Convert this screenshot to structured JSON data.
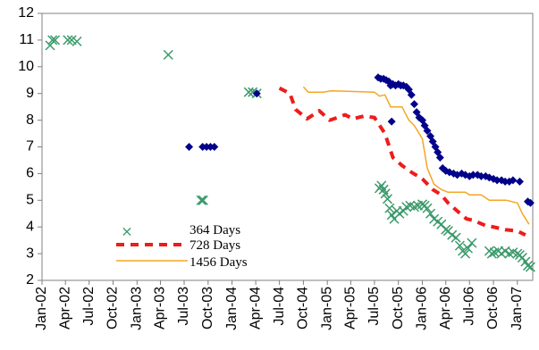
{
  "chart_data": {
    "type": "line",
    "ylim": [
      2,
      12
    ],
    "y_ticks": [
      "2",
      "3",
      "4",
      "5",
      "6",
      "7",
      "8",
      "9",
      "10",
      "11",
      "12"
    ],
    "x_range": [
      "2002-01-01",
      "2007-03-01"
    ],
    "x_ticks": [
      "Jan-02",
      "Apr-02",
      "Jul-02",
      "Oct-02",
      "Jan-03",
      "Apr-03",
      "Jul-03",
      "Oct-03",
      "Jan-04",
      "Apr-04",
      "Jul-04",
      "Oct-04",
      "Jan-05",
      "Apr-05",
      "Jul-05",
      "Oct-05",
      "Jan-06",
      "Apr-06",
      "Jul-06",
      "Oct-06",
      "Jan-07"
    ],
    "x_tick_dates": [
      "2002-01-01",
      "2002-04-01",
      "2002-07-01",
      "2002-10-01",
      "2003-01-01",
      "2003-04-01",
      "2003-07-01",
      "2003-10-01",
      "2004-01-01",
      "2004-04-01",
      "2004-07-01",
      "2004-10-01",
      "2005-01-01",
      "2005-04-01",
      "2005-07-01",
      "2005-10-01",
      "2006-01-01",
      "2006-04-01",
      "2006-07-01",
      "2006-10-01",
      "2007-01-01"
    ],
    "grid": false,
    "legend_position": "bottom-left",
    "series": [
      {
        "name": "364 Days",
        "style": "x-markers",
        "color": "#3a9a6a",
        "points": [
          [
            "2002-02-01",
            10.8
          ],
          [
            "2002-02-10",
            11.0
          ],
          [
            "2002-02-20",
            11.0
          ],
          [
            "2002-04-10",
            11.0
          ],
          [
            "2002-04-25",
            11.0
          ],
          [
            "2002-05-15",
            10.95
          ],
          [
            "2003-05-01",
            10.45
          ],
          [
            "2003-09-05",
            5.0
          ],
          [
            "2003-09-12",
            5.0
          ],
          [
            "2004-03-05",
            9.05
          ],
          [
            "2004-03-20",
            9.05
          ],
          [
            "2004-04-05",
            9.0
          ],
          [
            "2005-07-20",
            5.45
          ],
          [
            "2005-07-28",
            5.55
          ],
          [
            "2005-08-05",
            5.4
          ],
          [
            "2005-08-12",
            5.25
          ],
          [
            "2005-08-20",
            5.05
          ],
          [
            "2005-08-28",
            4.7
          ],
          [
            "2005-09-05",
            4.45
          ],
          [
            "2005-09-15",
            4.3
          ],
          [
            "2005-09-25",
            4.6
          ],
          [
            "2005-10-05",
            4.5
          ],
          [
            "2005-10-20",
            4.6
          ],
          [
            "2005-11-01",
            4.75
          ],
          [
            "2005-11-15",
            4.8
          ],
          [
            "2005-12-01",
            4.75
          ],
          [
            "2005-12-15",
            4.8
          ],
          [
            "2006-01-01",
            4.85
          ],
          [
            "2006-01-10",
            4.8
          ],
          [
            "2006-01-20",
            4.7
          ],
          [
            "2006-02-01",
            4.5
          ],
          [
            "2006-02-15",
            4.3
          ],
          [
            "2006-03-01",
            4.2
          ],
          [
            "2006-03-15",
            4.1
          ],
          [
            "2006-04-01",
            3.9
          ],
          [
            "2006-04-10",
            3.85
          ],
          [
            "2006-04-25",
            3.7
          ],
          [
            "2006-05-10",
            3.6
          ],
          [
            "2006-05-25",
            3.3
          ],
          [
            "2006-06-05",
            3.1
          ],
          [
            "2006-06-15",
            3.0
          ],
          [
            "2006-06-25",
            3.2
          ],
          [
            "2006-07-10",
            3.4
          ],
          [
            "2006-09-15",
            3.1
          ],
          [
            "2006-09-25",
            3.0
          ],
          [
            "2006-10-05",
            3.05
          ],
          [
            "2006-10-20",
            3.1
          ],
          [
            "2006-11-01",
            3.0
          ],
          [
            "2006-11-15",
            3.1
          ],
          [
            "2006-12-01",
            3.0
          ],
          [
            "2006-12-15",
            3.05
          ],
          [
            "2007-01-01",
            3.0
          ],
          [
            "2007-01-10",
            2.95
          ],
          [
            "2007-01-20",
            2.85
          ],
          [
            "2007-02-01",
            2.7
          ],
          [
            "2007-02-10",
            2.55
          ],
          [
            "2007-02-20",
            2.5
          ]
        ]
      },
      {
        "name": "728 Days",
        "style": "dashed-line",
        "color": "#ee1c1c",
        "points": [
          [
            "2004-07-01",
            9.2
          ],
          [
            "2004-08-10",
            9.0
          ],
          [
            "2004-09-01",
            8.4
          ],
          [
            "2004-10-15",
            8.05
          ],
          [
            "2004-12-01",
            8.35
          ],
          [
            "2005-01-10",
            8.0
          ],
          [
            "2005-02-10",
            8.1
          ],
          [
            "2005-03-10",
            8.2
          ],
          [
            "2005-04-10",
            8.05
          ],
          [
            "2005-05-20",
            8.15
          ],
          [
            "2005-07-01",
            8.1
          ],
          [
            "2005-08-10",
            7.5
          ],
          [
            "2005-09-10",
            6.6
          ],
          [
            "2005-10-15",
            6.3
          ],
          [
            "2005-11-20",
            6.05
          ],
          [
            "2006-01-01",
            5.8
          ],
          [
            "2006-02-10",
            5.4
          ],
          [
            "2006-03-15",
            5.2
          ],
          [
            "2006-04-10",
            4.9
          ],
          [
            "2006-05-15",
            4.6
          ],
          [
            "2006-06-20",
            4.3
          ],
          [
            "2006-07-15",
            4.25
          ],
          [
            "2006-09-01",
            4.05
          ],
          [
            "2006-10-01",
            4.0
          ],
          [
            "2006-11-15",
            3.9
          ],
          [
            "2007-01-01",
            3.85
          ],
          [
            "2007-02-01",
            3.7
          ]
        ]
      },
      {
        "name": "1456 Days",
        "style": "solid-line",
        "color": "#f5a623",
        "points": [
          [
            "2004-10-01",
            9.25
          ],
          [
            "2004-10-20",
            9.05
          ],
          [
            "2004-12-15",
            9.05
          ],
          [
            "2005-01-15",
            9.1
          ],
          [
            "2005-07-01",
            9.05
          ],
          [
            "2005-07-20",
            8.9
          ],
          [
            "2005-08-10",
            8.95
          ],
          [
            "2005-09-01",
            8.5
          ],
          [
            "2005-10-15",
            8.5
          ],
          [
            "2005-11-10",
            8.0
          ],
          [
            "2005-12-01",
            7.8
          ],
          [
            "2006-01-01",
            7.3
          ],
          [
            "2006-01-20",
            6.2
          ],
          [
            "2006-02-15",
            5.6
          ],
          [
            "2006-03-15",
            5.4
          ],
          [
            "2006-04-10",
            5.3
          ],
          [
            "2006-06-15",
            5.3
          ],
          [
            "2006-07-01",
            5.2
          ],
          [
            "2006-08-15",
            5.2
          ],
          [
            "2006-09-15",
            5.0
          ],
          [
            "2006-11-20",
            5.0
          ],
          [
            "2007-01-01",
            4.9
          ],
          [
            "2007-01-20",
            4.5
          ],
          [
            "2007-02-15",
            4.1
          ]
        ]
      },
      {
        "name": "",
        "style": "diamond-markers",
        "color": "#00008b",
        "points": [
          [
            "2003-07-20",
            7.0
          ],
          [
            "2003-09-10",
            7.0
          ],
          [
            "2003-09-25",
            7.0
          ],
          [
            "2003-10-10",
            7.0
          ],
          [
            "2003-10-25",
            7.0
          ],
          [
            "2004-04-05",
            9.0
          ],
          [
            "2005-07-15",
            9.6
          ],
          [
            "2005-07-25",
            9.55
          ],
          [
            "2005-08-05",
            9.55
          ],
          [
            "2005-08-15",
            9.5
          ],
          [
            "2005-08-25",
            9.45
          ],
          [
            "2005-09-01",
            9.3
          ],
          [
            "2005-09-10",
            9.35
          ],
          [
            "2005-09-20",
            9.3
          ],
          [
            "2005-10-01",
            9.35
          ],
          [
            "2005-10-10",
            9.3
          ],
          [
            "2005-10-20",
            9.3
          ],
          [
            "2005-11-01",
            9.25
          ],
          [
            "2005-11-10",
            9.15
          ],
          [
            "2005-11-20",
            8.95
          ],
          [
            "2005-09-05",
            7.95
          ],
          [
            "2005-12-01",
            8.6
          ],
          [
            "2005-12-10",
            8.3
          ],
          [
            "2005-12-20",
            8.1
          ],
          [
            "2006-01-01",
            8.0
          ],
          [
            "2006-01-10",
            7.8
          ],
          [
            "2006-01-20",
            7.6
          ],
          [
            "2006-02-01",
            7.4
          ],
          [
            "2006-02-10",
            7.2
          ],
          [
            "2006-02-20",
            7.0
          ],
          [
            "2006-03-01",
            6.8
          ],
          [
            "2006-03-10",
            6.6
          ],
          [
            "2006-03-20",
            6.2
          ],
          [
            "2006-04-01",
            6.1
          ],
          [
            "2006-04-15",
            6.05
          ],
          [
            "2006-05-01",
            6.0
          ],
          [
            "2006-05-15",
            5.95
          ],
          [
            "2006-06-01",
            6.0
          ],
          [
            "2006-06-15",
            5.95
          ],
          [
            "2006-07-01",
            5.9
          ],
          [
            "2006-07-15",
            5.95
          ],
          [
            "2006-08-01",
            5.95
          ],
          [
            "2006-08-15",
            5.9
          ],
          [
            "2006-09-01",
            5.9
          ],
          [
            "2006-09-15",
            5.85
          ],
          [
            "2006-10-01",
            5.8
          ],
          [
            "2006-10-15",
            5.75
          ],
          [
            "2006-11-01",
            5.75
          ],
          [
            "2006-11-15",
            5.7
          ],
          [
            "2006-12-01",
            5.7
          ],
          [
            "2006-12-15",
            5.75
          ],
          [
            "2007-01-10",
            5.7
          ],
          [
            "2007-02-10",
            4.95
          ],
          [
            "2007-02-20",
            4.9
          ]
        ]
      }
    ]
  },
  "legend": [
    {
      "label": "364 Days",
      "style": "x-marker",
      "color": "#3a9a6a"
    },
    {
      "label": "728 Days",
      "style": "dashed-line",
      "color": "#ee1c1c"
    },
    {
      "label": "1456 Days",
      "style": "solid-line",
      "color": "#f5a623"
    }
  ]
}
